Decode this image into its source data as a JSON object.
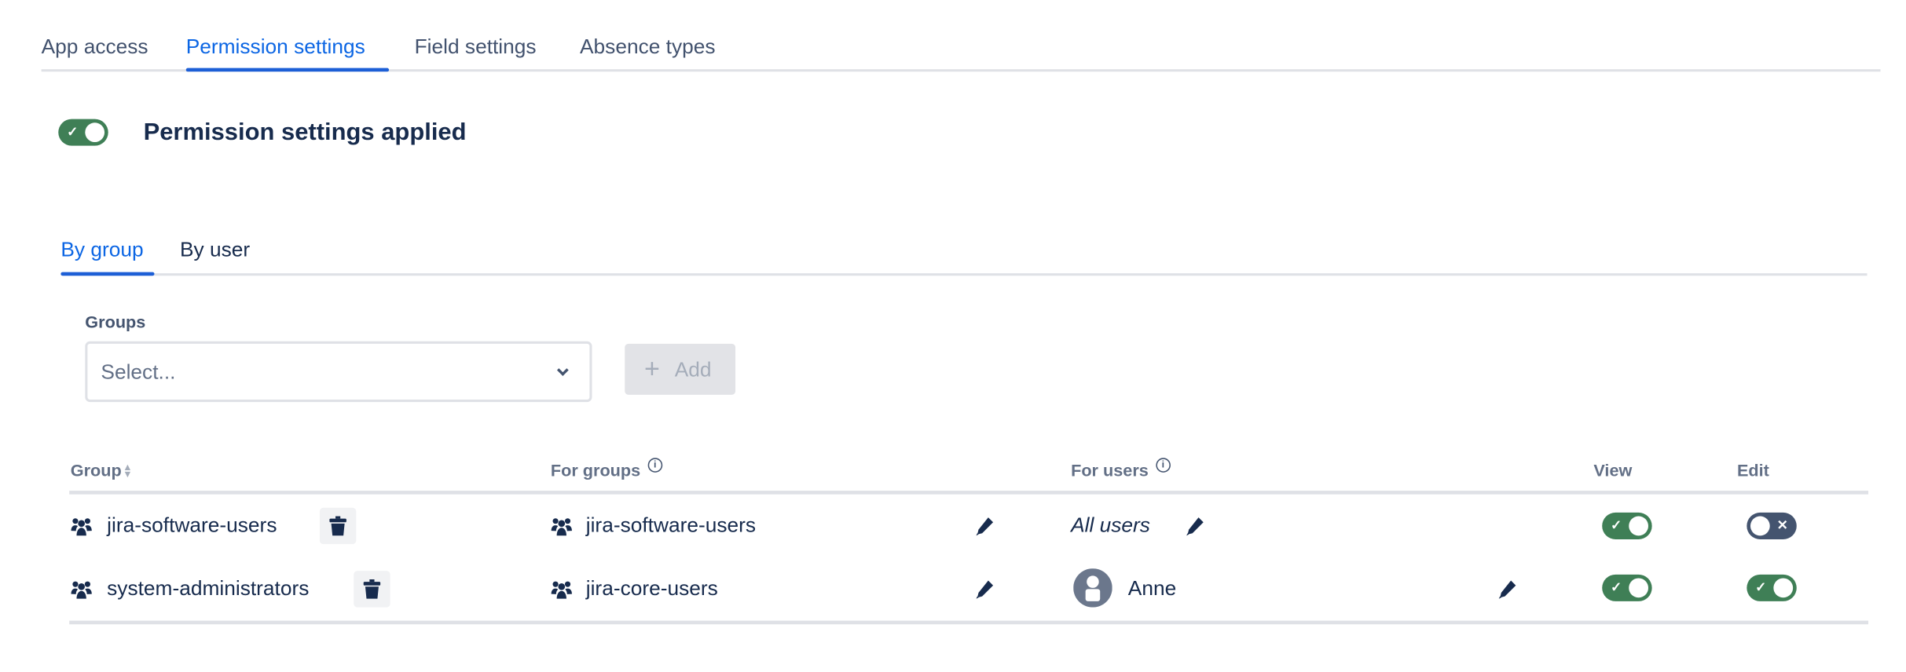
{
  "tabs": [
    {
      "label": "App access"
    },
    {
      "label": "Permission settings",
      "active": true
    },
    {
      "label": "Field settings"
    },
    {
      "label": "Absence types"
    }
  ],
  "permission_toggle": {
    "label": "Permission settings applied",
    "on": true
  },
  "subtabs": [
    {
      "label": "By group",
      "active": true
    },
    {
      "label": "By user"
    }
  ],
  "groups_field": {
    "label": "Groups",
    "placeholder": "Select...",
    "add_label": "Add"
  },
  "table": {
    "headers": {
      "group": "Group",
      "for_groups": "For groups",
      "for_users": "For users",
      "view": "View",
      "edit": "Edit"
    },
    "rows": [
      {
        "group": "jira-software-users",
        "for_groups": "jira-software-users",
        "for_users": "All users",
        "for_users_italic": true,
        "view": true,
        "edit": false
      },
      {
        "group": "system-administrators",
        "for_groups": "jira-core-users",
        "for_users": "Anne",
        "for_users_avatar": true,
        "view": true,
        "edit": true
      }
    ]
  },
  "colors": {
    "accent": "#0c66e4",
    "toggle_on": "#3f7f56",
    "toggle_off": "#44546f"
  }
}
